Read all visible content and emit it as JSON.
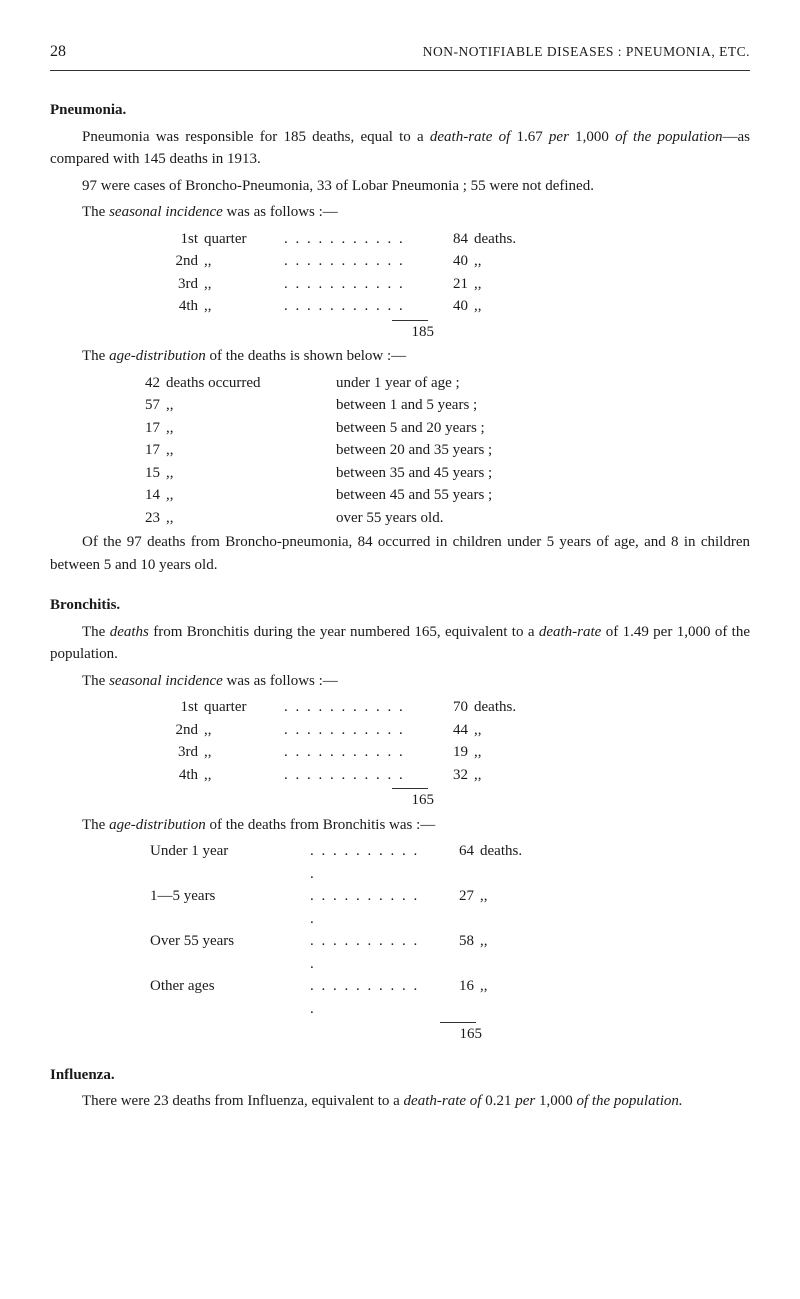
{
  "header": {
    "page_number": "28",
    "running_head": "NON-NOTIFIABLE DISEASES : PNEUMONIA, ETC."
  },
  "pneumonia": {
    "title": "Pneumonia.",
    "p1_a": "Pneumonia was responsible for 185 deaths, equal to a ",
    "p1_b": "death-rate of",
    "p1_c": " 1.67 ",
    "p1_d": "per",
    "p1_e": " 1,000 ",
    "p1_f": "of the population",
    "p1_g": "—as compared with 145 deaths in 1913.",
    "p2": "97 were cases of Broncho-Pneumonia, 33 of Lobar Pneumonia ; 55 were not defined.",
    "p3_a": "The ",
    "p3_b": "seasonal incidence",
    "p3_c": " was as follows :—",
    "season_rows": [
      {
        "ord": "1st",
        "word": "quarter",
        "num": "84",
        "unit": "deaths."
      },
      {
        "ord": "2nd",
        "word": ",,",
        "num": "40",
        "unit": ",,"
      },
      {
        "ord": "3rd",
        "word": ",,",
        "num": "21",
        "unit": ",,"
      },
      {
        "ord": "4th",
        "word": ",,",
        "num": "40",
        "unit": ",,"
      }
    ],
    "season_total": "185",
    "p4_a": "The ",
    "p4_b": "age-distribution",
    "p4_c": " of the deaths is shown below :—",
    "age_rows": [
      {
        "n": "42",
        "w": "deaths occurred",
        "t": "under 1 year of age ;"
      },
      {
        "n": "57",
        "w": ",,",
        "t": "between 1 and 5 years ;"
      },
      {
        "n": "17",
        "w": ",,",
        "t": "between 5 and 20 years ;"
      },
      {
        "n": "17",
        "w": ",,",
        "t": "between 20 and 35 years ;"
      },
      {
        "n": "15",
        "w": ",,",
        "t": "between 35 and 45 years ;"
      },
      {
        "n": "14",
        "w": ",,",
        "t": "between 45 and 55 years ;"
      },
      {
        "n": "23",
        "w": ",,",
        "t": "over 55 years old."
      }
    ],
    "p5": "Of the 97 deaths from Broncho-pneumonia, 84 occurred in children under 5 years of age, and 8 in children between 5 and 10 years old."
  },
  "bronchitis": {
    "title": "Bronchitis.",
    "p1_a": "The ",
    "p1_b": "deaths",
    "p1_c": " from Bronchitis during the year numbered 165, equivalent to a ",
    "p1_d": "death-rate",
    "p1_e": " of 1.49 per 1,000 of the population.",
    "p2_a": "The ",
    "p2_b": "seasonal incidence",
    "p2_c": " was as follows :—",
    "season_rows": [
      {
        "ord": "1st",
        "word": "quarter",
        "num": "70",
        "unit": "deaths."
      },
      {
        "ord": "2nd",
        "word": ",,",
        "num": "44",
        "unit": ",,"
      },
      {
        "ord": "3rd",
        "word": ",,",
        "num": "19",
        "unit": ",,"
      },
      {
        "ord": "4th",
        "word": ",,",
        "num": "32",
        "unit": ",,"
      }
    ],
    "season_total": "165",
    "p3_a": "The ",
    "p3_b": "age-distribution",
    "p3_c": " of the deaths from Bronchitis was :—",
    "age_rows": [
      {
        "label": "Under 1 year",
        "num": "64",
        "unit": "deaths."
      },
      {
        "label": "1—5 years",
        "num": "27",
        "unit": ",,"
      },
      {
        "label": "Over 55 years",
        "num": "58",
        "unit": ",,"
      },
      {
        "label": "Other ages",
        "num": "16",
        "unit": ",,"
      }
    ],
    "age_total": "165"
  },
  "influenza": {
    "title": "Influenza.",
    "p1_a": "There were 23 deaths from Influenza, equivalent to a ",
    "p1_b": "death-rate of",
    "p1_c": " 0.21 ",
    "p1_d": "per",
    "p1_e": " 1,000 ",
    "p1_f": "of the population."
  },
  "dots": ". . . . . . . . . . ."
}
